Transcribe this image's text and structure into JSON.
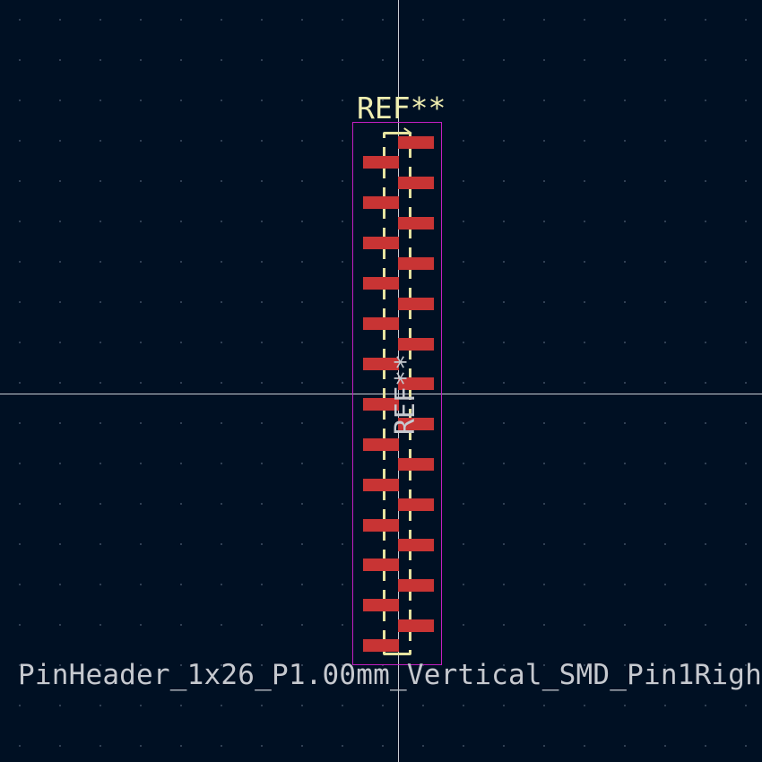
{
  "canvas": {
    "background": "#001023",
    "grid": "dotted"
  },
  "footprint": {
    "reference": "REF**",
    "fab_reference": "REF**",
    "name": "PinHeader_1x26_P1.00mm_Vertical_SMD_Pin1Righ",
    "pad_count": 26,
    "pad_color": "#c83434",
    "silkscreen_color": "#e6e3a0",
    "courtyard_color": "#c21fc3"
  }
}
